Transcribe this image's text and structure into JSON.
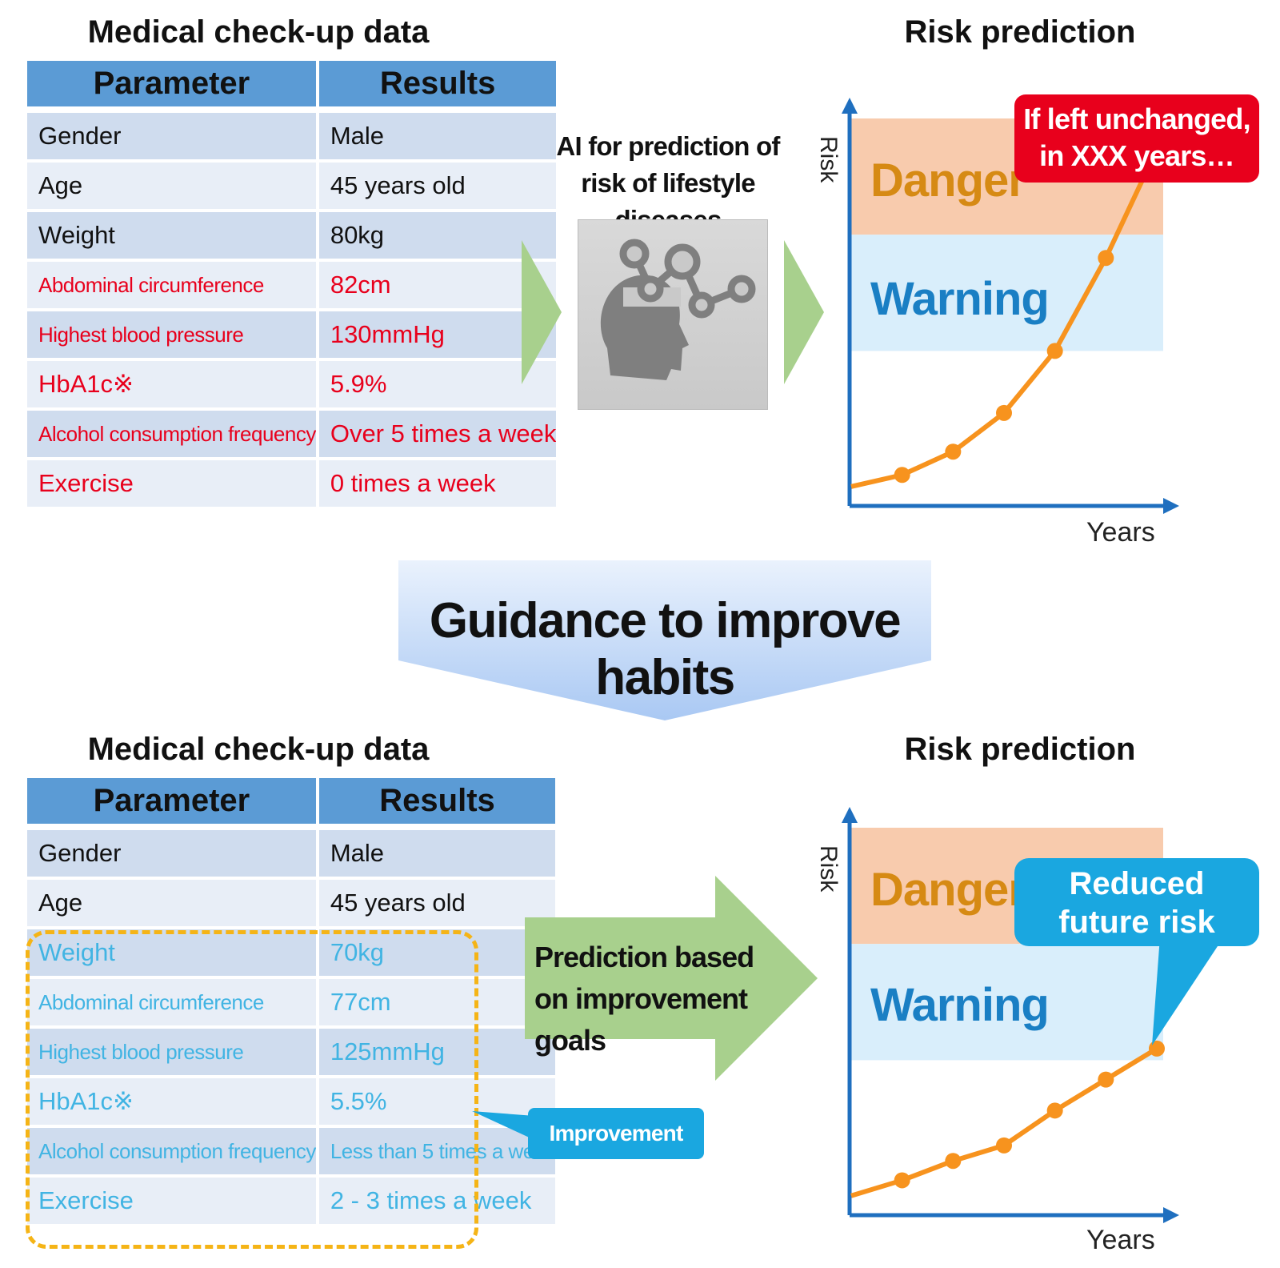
{
  "top": {
    "table_title": "Medical check-up data",
    "header": {
      "parameter": "Parameter",
      "results": "Results"
    },
    "rows": [
      {
        "parameter": "Gender",
        "result": "Male",
        "style": "normal"
      },
      {
        "parameter": "Age",
        "result": "45 years old",
        "style": "normal"
      },
      {
        "parameter": "Weight",
        "result": "80kg",
        "style": "normal"
      },
      {
        "parameter": "Abdominal circumference",
        "result": "82cm",
        "style": "red"
      },
      {
        "parameter": "Highest blood pressure",
        "result": "130mmHg",
        "style": "red"
      },
      {
        "parameter": "HbA1c※",
        "result": "5.9%",
        "style": "red"
      },
      {
        "parameter": "Alcohol consumption frequency",
        "result": "Over 5 times a week",
        "style": "red"
      },
      {
        "parameter": "Exercise",
        "result": "0 times a week",
        "style": "red"
      }
    ],
    "ai_label": "AI for prediction of risk of lifestyle diseases",
    "risk_title": "Risk prediction",
    "chart": {
      "y_label": "Risk",
      "x_label": "Years",
      "danger_label": "Danger",
      "warning_label": "Warning",
      "callout": "If left unchanged, in XXX years…"
    }
  },
  "guidance": "Guidance to improve habits",
  "bottom": {
    "table_title": "Medical check-up data",
    "header": {
      "parameter": "Parameter",
      "results": "Results"
    },
    "rows": [
      {
        "parameter": "Gender",
        "result": "Male",
        "style": "normal"
      },
      {
        "parameter": "Age",
        "result": "45 years old",
        "style": "normal"
      },
      {
        "parameter": "Weight",
        "result": "70kg",
        "style": "blue"
      },
      {
        "parameter": "Abdominal circumference",
        "result": "77cm",
        "style": "blue"
      },
      {
        "parameter": "Highest blood pressure",
        "result": "125mmHg",
        "style": "blue"
      },
      {
        "parameter": "HbA1c※",
        "result": "5.5%",
        "style": "blue"
      },
      {
        "parameter": "Alcohol consumption frequency",
        "result": "Less than 5 times a week",
        "style": "blue"
      },
      {
        "parameter": "Exercise",
        "result": "2 - 3 times a week",
        "style": "blue"
      }
    ],
    "goal_label": "Improvement goals",
    "prediction_label": "Prediction based on improvement goals",
    "risk_title": "Risk prediction",
    "chart": {
      "y_label": "Risk",
      "x_label": "Years",
      "danger_label": "Danger",
      "warning_label": "Warning",
      "callout": "Reduced future risk"
    }
  },
  "colors": {
    "danger": "#f8cbad",
    "warning": "#d9eefb",
    "line": "#f7931e",
    "axis": "#1f6fbf",
    "red_callout": "#e8001c",
    "blue_callout": "#1aa7e0",
    "arrow_green": "#a8d08d",
    "dash": "#f5b416"
  },
  "chart_data": [
    {
      "type": "line",
      "title": "Risk prediction",
      "xlabel": "Years",
      "ylabel": "Risk",
      "x": [
        0,
        1,
        2,
        3,
        4,
        5,
        6
      ],
      "series": [
        {
          "values": [
            5,
            8,
            14,
            24,
            40,
            64,
            92
          ]
        }
      ],
      "ylim": [
        0,
        100
      ],
      "zones": [
        {
          "name": "Danger",
          "from": 70,
          "to": 100
        },
        {
          "name": "Warning",
          "from": 40,
          "to": 70
        }
      ]
    },
    {
      "type": "line",
      "title": "Risk prediction",
      "xlabel": "Years",
      "ylabel": "Risk",
      "x": [
        0,
        1,
        2,
        3,
        4,
        5,
        6
      ],
      "series": [
        {
          "values": [
            5,
            9,
            14,
            18,
            27,
            35,
            43
          ]
        }
      ],
      "ylim": [
        0,
        100
      ],
      "zones": [
        {
          "name": "Danger",
          "from": 70,
          "to": 100
        },
        {
          "name": "Warning",
          "from": 40,
          "to": 70
        }
      ]
    }
  ]
}
